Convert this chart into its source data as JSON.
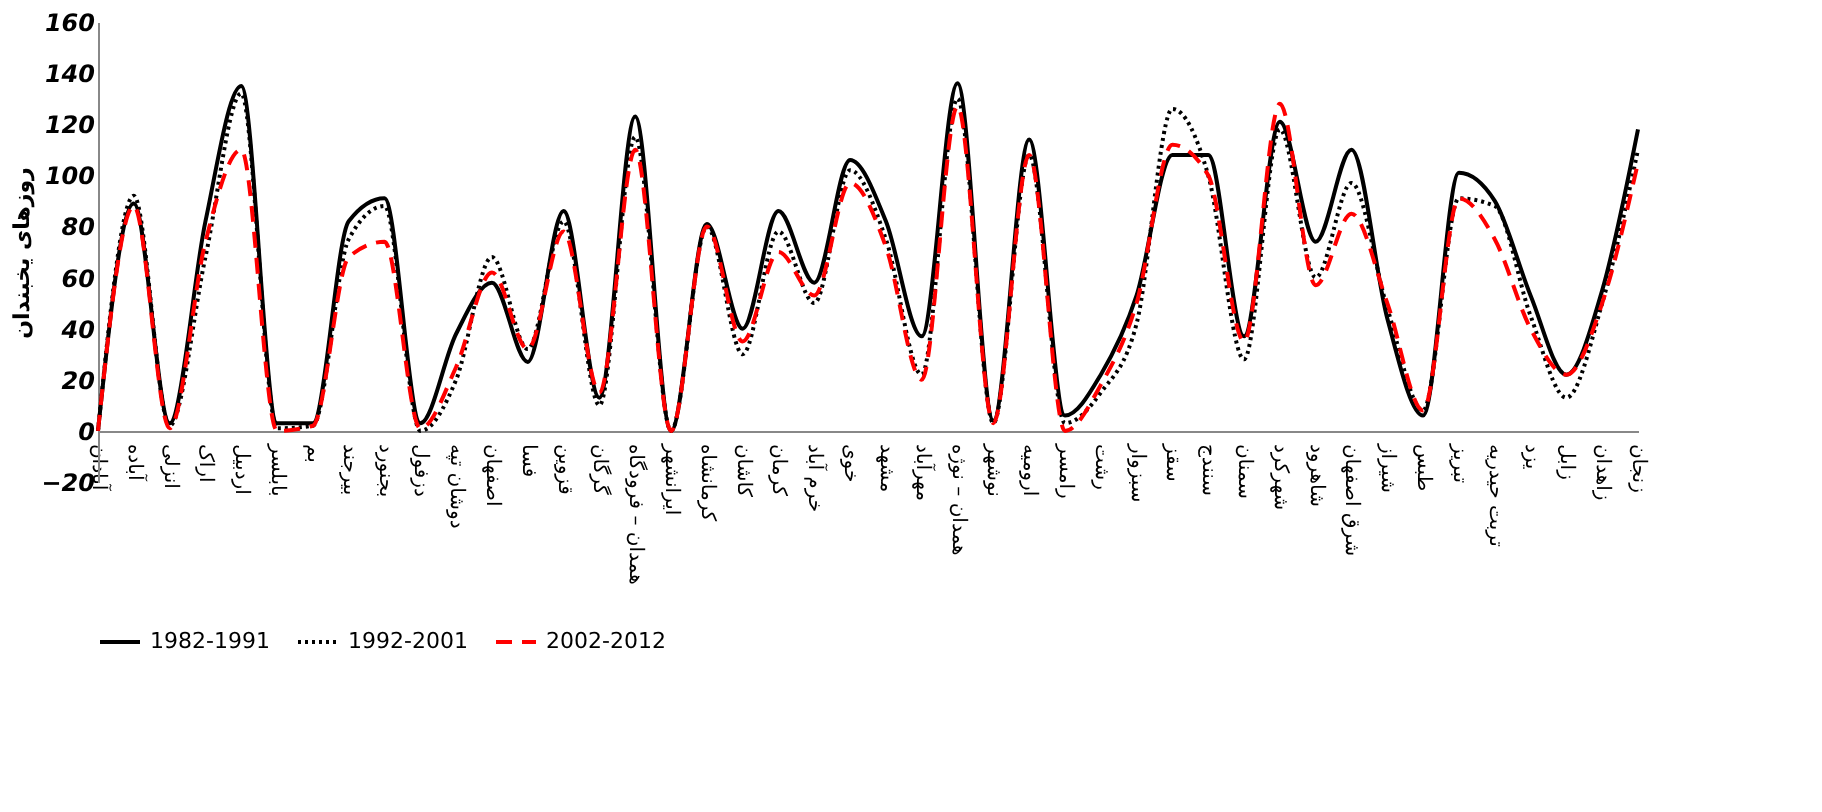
{
  "chart_data": {
    "type": "line",
    "ylabel": "روزهای یخبندان",
    "categories": [
      "آبادان",
      "آباده",
      "انزلی",
      "اراک",
      "اردبیل",
      "بابلسر",
      "بم",
      "بیرجند",
      "بجنورد",
      "دزفول",
      "دوشان تپه",
      "اصفهان",
      "فسا",
      "قزوین",
      "گرگان",
      "همدان – فرودگاه",
      "ایرانشهر",
      "کرمانشاه",
      "کاشان",
      "کرمان",
      "خرم آباد",
      "خوی",
      "مشهد",
      "مهرآباد",
      "همدان – نوژه",
      "نوشهر",
      "ارومیه",
      "رامسر",
      "رشت",
      "سبزوار",
      "سقز",
      "سنندج",
      "سمنان",
      "شهرکرد",
      "شاهرود",
      "شرق اصفهان",
      "شیراز",
      "طبس",
      "تبریز",
      "تربت حیدریه",
      "یزد",
      "زابل",
      "زاهدان",
      "زنجان"
    ],
    "series": [
      {
        "name": "1982-1991",
        "color": "#000000",
        "line_style": "solid",
        "values": [
          0,
          89,
          3,
          82,
          135,
          3,
          3,
          82,
          91,
          3,
          38,
          58,
          27,
          86,
          13,
          123,
          0,
          81,
          40,
          86,
          58,
          106,
          82,
          37,
          136,
          4,
          114,
          6,
          22,
          53,
          108,
          108,
          37,
          121,
          74,
          110,
          44,
          6,
          101,
          90,
          53,
          22,
          55,
          118
        ]
      },
      {
        "name": "1992-2001",
        "color": "#000000",
        "line_style": "dotted",
        "values": [
          0,
          92,
          2,
          68,
          132,
          1,
          2,
          75,
          88,
          0,
          20,
          68,
          32,
          82,
          10,
          115,
          0,
          80,
          30,
          78,
          50,
          102,
          75,
          22,
          130,
          3,
          108,
          3,
          15,
          42,
          126,
          100,
          28,
          118,
          60,
          97,
          48,
          8,
          91,
          88,
          45,
          13,
          50,
          110
        ]
      },
      {
        "name": "2002-2012",
        "color": "#ff0000",
        "line_style": "dashed",
        "values": [
          0,
          88,
          1,
          74,
          110,
          0,
          2,
          68,
          74,
          1,
          25,
          62,
          32,
          78,
          15,
          110,
          0,
          80,
          35,
          70,
          53,
          97,
          72,
          20,
          127,
          3,
          108,
          0,
          18,
          50,
          112,
          100,
          35,
          128,
          57,
          85,
          50,
          8,
          91,
          75,
          40,
          22,
          50,
          105
        ]
      }
    ],
    "ylim": [
      -20,
      160
    ],
    "yticks": [
      -20,
      0,
      20,
      40,
      60,
      80,
      100,
      120,
      140,
      160
    ],
    "grid": false,
    "legend": "bottom",
    "marker": "none"
  }
}
